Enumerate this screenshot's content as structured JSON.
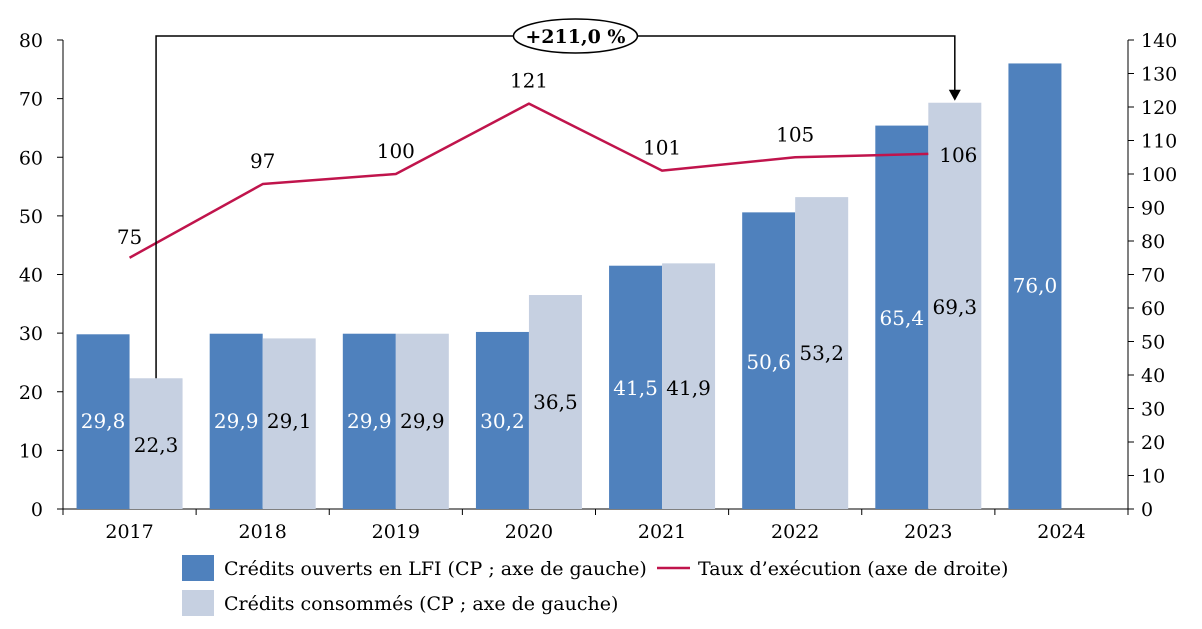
{
  "chart_data": {
    "type": "bar",
    "categories": [
      "2017",
      "2018",
      "2019",
      "2020",
      "2021",
      "2022",
      "2023",
      "2024"
    ],
    "series": [
      {
        "name": "Crédits ouverts en LFI (CP ; axe de gauche)",
        "kind": "bar",
        "axis": "left",
        "color": "#4f81bd",
        "values": [
          29.8,
          29.9,
          29.9,
          30.2,
          41.5,
          50.6,
          65.4,
          76.0
        ],
        "labels": [
          "29,8",
          "29,9",
          "29,9",
          "30,2",
          "41,5",
          "50,6",
          "65,4",
          "76,0"
        ]
      },
      {
        "name": "Crédits consommés (CP ; axe de gauche)",
        "kind": "bar",
        "axis": "left",
        "color": "#c6d0e1",
        "values": [
          22.3,
          29.1,
          29.9,
          36.5,
          41.9,
          53.2,
          69.3,
          null
        ],
        "labels": [
          "22,3",
          "29,1",
          "29,9",
          "36,5",
          "41,9",
          "53,2",
          "69,3",
          ""
        ]
      },
      {
        "name": "Taux d’exécution (axe de droite)",
        "kind": "line",
        "axis": "right",
        "color": "#c0144c",
        "values": [
          75,
          97,
          100,
          121,
          101,
          105,
          106,
          null
        ],
        "labels": [
          "75",
          "97",
          "100",
          "121",
          "101",
          "105",
          "106",
          ""
        ]
      }
    ],
    "y_left": {
      "min": 0,
      "max": 80,
      "step": 10,
      "ticks": [
        "0",
        "10",
        "20",
        "30",
        "40",
        "50",
        "60",
        "70",
        "80"
      ]
    },
    "y_right": {
      "min": 0,
      "max": 140,
      "step": 10,
      "ticks": [
        "0",
        "10",
        "20",
        "30",
        "40",
        "50",
        "60",
        "70",
        "80",
        "90",
        "100",
        "110",
        "120",
        "130",
        "140"
      ]
    },
    "annotation": {
      "text": "+211,0 %",
      "from_category": "2017",
      "to_category": "2023"
    },
    "grid": false,
    "legend_position": "bottom"
  }
}
